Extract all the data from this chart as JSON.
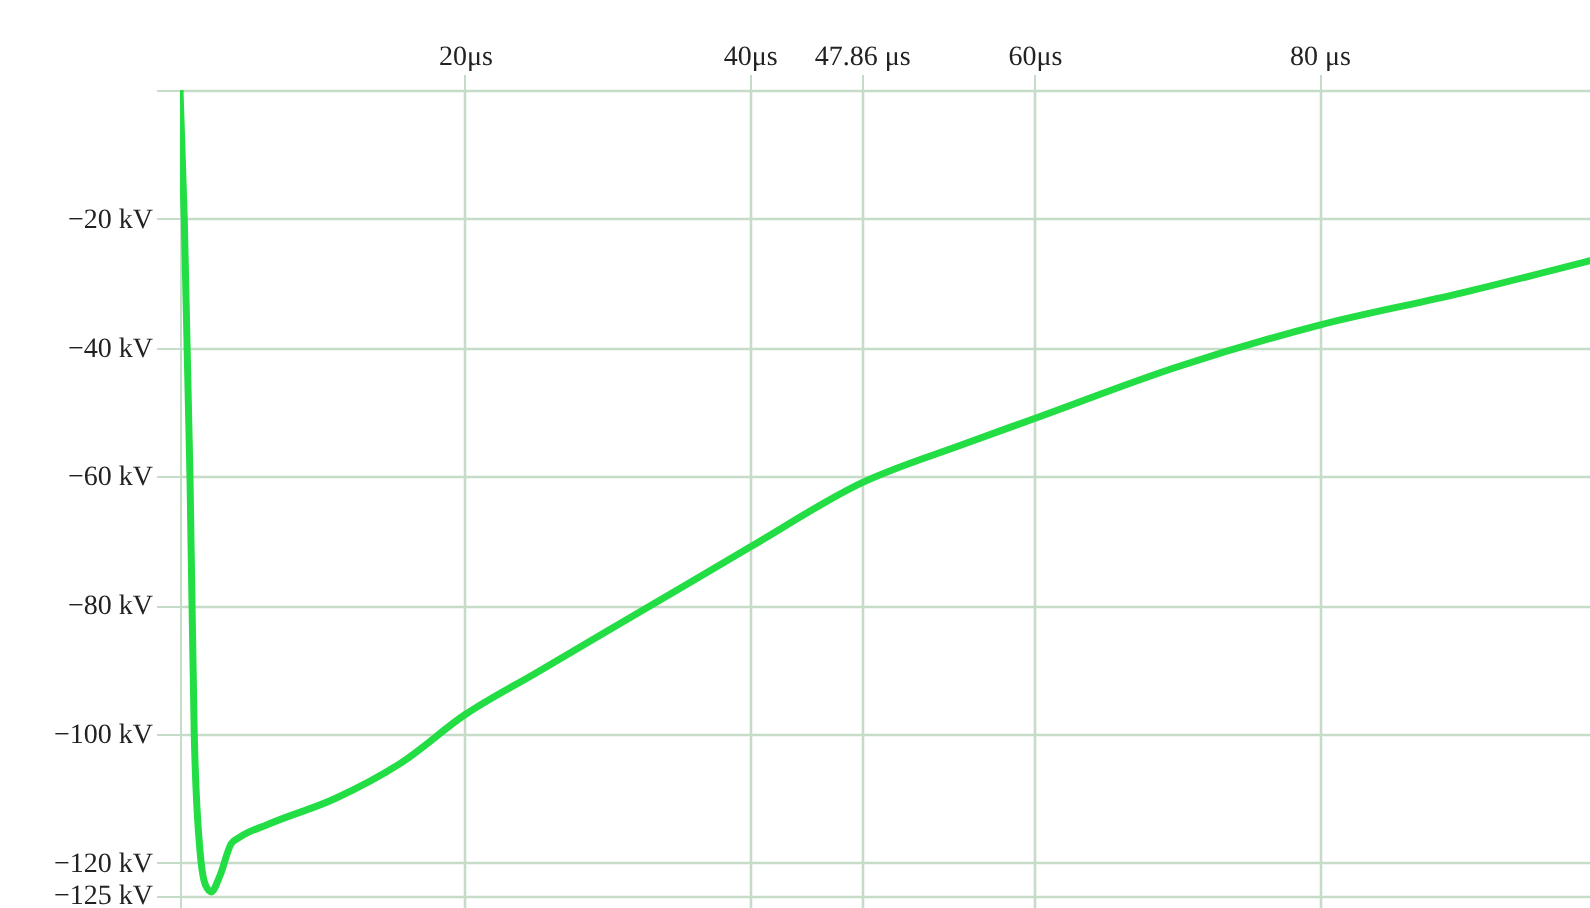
{
  "chart_data": {
    "type": "line",
    "x": [
      0,
      0.3,
      0.7,
      1.0,
      1.4,
      1.8,
      2.2,
      2.8,
      3.6,
      4.2,
      6.2,
      10.9,
      15.5,
      20,
      25,
      30,
      35,
      40,
      47.86,
      55,
      60,
      70,
      80,
      90,
      99
    ],
    "series": [
      {
        "color": "#22dd44",
        "values": [
          0,
          -20,
          -60,
          -100,
          -118,
          -123.5,
          -124.5,
          -122,
          -117,
          -116,
          -114,
          -110,
          -104.5,
          -97,
          -90.5,
          -84,
          -77.5,
          -71,
          -61,
          -55,
          -51,
          -43,
          -36.5,
          -31.5,
          -26.5
        ]
      }
    ],
    "xlim": [
      0,
      99
    ],
    "ylim": [
      -127,
      0
    ],
    "xticks": [
      {
        "value": 20,
        "label": "20μs"
      },
      {
        "value": 40,
        "label": "40μs"
      },
      {
        "value": 47.86,
        "label": "47.86 μs"
      },
      {
        "value": 60,
        "label": "60μs"
      },
      {
        "value": 80,
        "label": "80 μs"
      }
    ],
    "yticks": [
      {
        "value": 0,
        "label": null
      },
      {
        "value": -20,
        "label": "−20 kV"
      },
      {
        "value": -40,
        "label": "−40 kV"
      },
      {
        "value": -60,
        "label": "−60 kV"
      },
      {
        "value": -80,
        "label": "−80 kV"
      },
      {
        "value": -100,
        "label": "−100 kV"
      },
      {
        "value": -120,
        "label": "−120 kV"
      },
      {
        "value": -125,
        "label": "−125 kV"
      }
    ],
    "grid": true,
    "marker": "none",
    "line_style": "solid"
  }
}
